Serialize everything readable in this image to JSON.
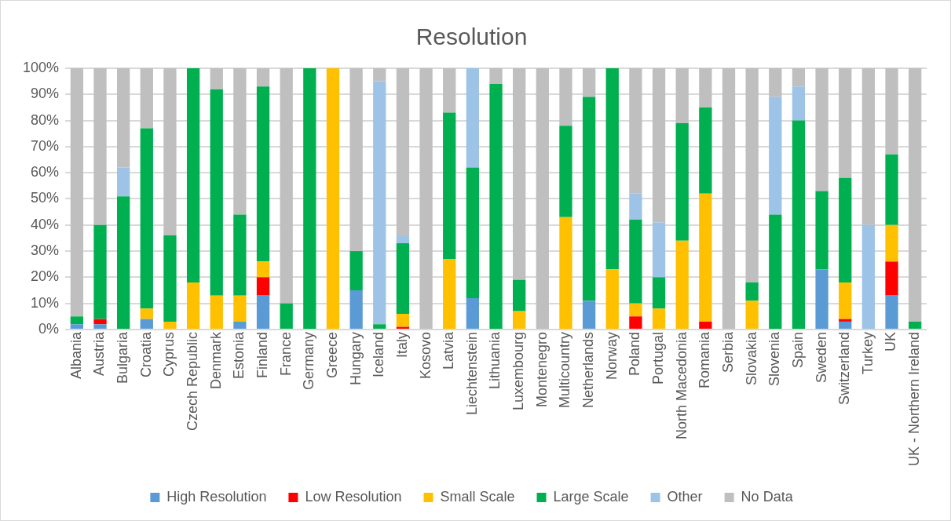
{
  "chart_data": {
    "type": "bar",
    "title": "Resolution",
    "stacked": true,
    "grid": "y",
    "legend": "bottom",
    "categories": [
      "Albania",
      "Austria",
      "Bulgaria",
      "Croatia",
      "Cyprus",
      "Czech Republic",
      "Denmark",
      "Estonia",
      "Finland",
      "France",
      "Germany",
      "Greece",
      "Hungary",
      "Iceland",
      "Italy",
      "Kosovo",
      "Latvia",
      "Liechtenstein",
      "Lithuania",
      "Luxembourg",
      "Montenegro",
      "Multicountry",
      "Netherlands",
      "Norway",
      "Poland",
      "Portugal",
      "North Macedonia",
      "Romania",
      "Serbia",
      "Slovakia",
      "Slovenia",
      "Spain",
      "Sweden",
      "Switzerland",
      "Turkey",
      "UK",
      "UK - Northern Ireland"
    ],
    "ylim": [
      0,
      100
    ],
    "yticks": [
      {
        "value": 0,
        "label": "0%"
      },
      {
        "value": 10,
        "label": "10%"
      },
      {
        "value": 20,
        "label": "20%"
      },
      {
        "value": 30,
        "label": "30%"
      },
      {
        "value": 40,
        "label": "40%"
      },
      {
        "value": 50,
        "label": "50%"
      },
      {
        "value": 60,
        "label": "60%"
      },
      {
        "value": 70,
        "label": "70%"
      },
      {
        "value": 80,
        "label": "80%"
      },
      {
        "value": 90,
        "label": "90%"
      },
      {
        "value": 100,
        "label": "100%"
      }
    ],
    "series": [
      {
        "name": "High Resolution",
        "color": "#5b9bd5",
        "values": [
          2,
          2,
          0,
          4,
          0,
          0,
          0,
          3,
          13,
          0,
          0,
          0,
          15,
          0,
          0,
          0,
          0,
          12,
          0,
          0,
          0,
          0,
          11,
          0,
          0,
          0,
          0,
          0,
          0,
          0,
          0,
          0,
          23,
          3,
          0,
          13,
          0
        ]
      },
      {
        "name": "Low Resolution",
        "color": "#ff0000",
        "values": [
          0,
          2,
          0,
          0,
          0,
          0,
          0,
          0,
          7,
          0,
          0,
          0,
          0,
          0,
          1,
          0,
          0,
          0,
          0,
          0,
          0,
          0,
          0,
          0,
          5,
          0,
          0,
          3,
          0,
          0,
          0,
          0,
          0,
          1,
          0,
          13,
          0
        ]
      },
      {
        "name": "Small Scale",
        "color": "#ffc000",
        "values": [
          0,
          0,
          0,
          4,
          3,
          18,
          13,
          10,
          6,
          0,
          0,
          100,
          0,
          0,
          5,
          0,
          27,
          0,
          0,
          7,
          0,
          43,
          0,
          23,
          5,
          8,
          34,
          49,
          0,
          11,
          0,
          0,
          0,
          14,
          0,
          14,
          0
        ]
      },
      {
        "name": "Large Scale",
        "color": "#00b050",
        "values": [
          3,
          36,
          51,
          69,
          33,
          82,
          79,
          31,
          67,
          10,
          100,
          0,
          15,
          2,
          27,
          0,
          56,
          50,
          94,
          12,
          0,
          35,
          78,
          77,
          32,
          12,
          45,
          33,
          0,
          7,
          44,
          80,
          30,
          40,
          0,
          27,
          3
        ]
      },
      {
        "name": "Other",
        "color": "#9dc3e6",
        "values": [
          0,
          0,
          11,
          0,
          0,
          0,
          0,
          0,
          0,
          0,
          0,
          0,
          0,
          93,
          3,
          0,
          0,
          38,
          0,
          0,
          0,
          0,
          0,
          0,
          10,
          21,
          0,
          0,
          0,
          0,
          45,
          13,
          0,
          0,
          40,
          0,
          0
        ]
      },
      {
        "name": "No Data",
        "color": "#bfbfbf",
        "values": [
          95,
          60,
          38,
          23,
          64,
          0,
          8,
          56,
          7,
          90,
          0,
          0,
          70,
          5,
          64,
          100,
          17,
          0,
          6,
          81,
          100,
          22,
          11,
          0,
          48,
          59,
          21,
          15,
          100,
          82,
          11,
          7,
          47,
          42,
          60,
          33,
          97
        ]
      }
    ]
  }
}
